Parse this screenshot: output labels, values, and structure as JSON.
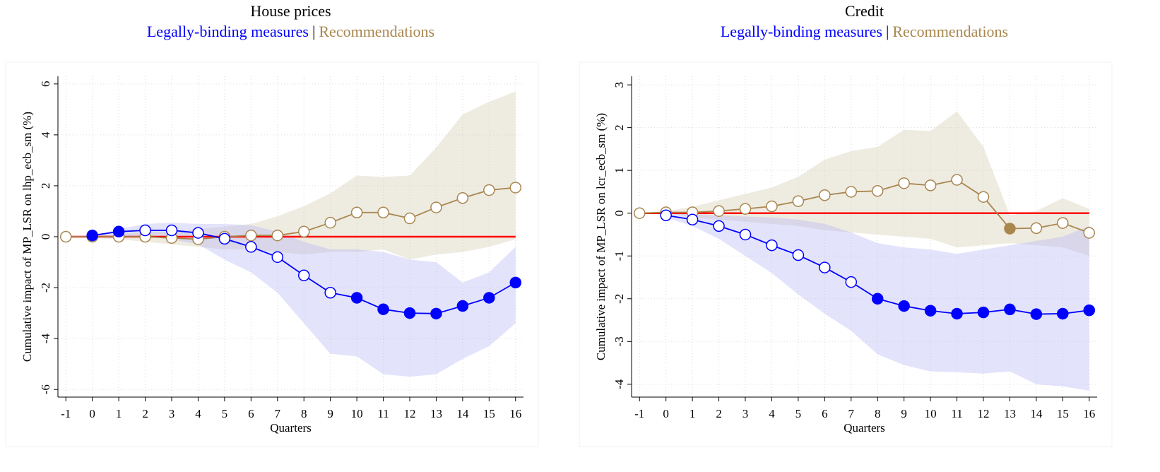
{
  "chart_data": [
    {
      "type": "line",
      "title": "House prices",
      "subtitle_separator": "|",
      "y_label": "Cumulative impact of MP_LSR on lhp_ecb_sm (%)",
      "x_label": "Quarters",
      "x": [
        -1,
        0,
        1,
        2,
        3,
        4,
        5,
        6,
        7,
        8,
        9,
        10,
        11,
        12,
        13,
        14,
        15,
        16
      ],
      "xlim": [
        -1.3,
        16.3
      ],
      "xticks": [
        -1,
        0,
        1,
        2,
        3,
        4,
        5,
        6,
        7,
        8,
        9,
        10,
        11,
        12,
        13,
        14,
        15,
        16
      ],
      "ylim": [
        -6.3,
        6.3
      ],
      "yticks": [
        -6,
        -4,
        -2,
        0,
        2,
        4,
        6
      ],
      "grid": true,
      "reference_line": {
        "value": 0,
        "color": "#ff0000"
      },
      "series": [
        {
          "name": "Recommendations",
          "color": "#a8864e",
          "band_color": "#cfc6a8",
          "values": [
            0,
            0,
            0,
            0,
            -0.05,
            -0.1,
            0,
            0.05,
            0.05,
            0.2,
            0.55,
            0.95,
            0.95,
            0.72,
            1.15,
            1.52,
            1.83,
            1.93
          ],
          "upper": [
            0,
            0.05,
            0.1,
            0.2,
            0.2,
            0.3,
            0.4,
            0.5,
            0.8,
            1.2,
            1.7,
            2.4,
            2.35,
            2.4,
            3.5,
            4.8,
            5.3,
            5.7
          ],
          "lower": [
            0,
            -0.05,
            -0.1,
            -0.2,
            -0.3,
            -0.4,
            -0.5,
            -0.5,
            -0.6,
            -0.7,
            -0.6,
            -0.6,
            -0.5,
            -0.9,
            -0.7,
            -0.6,
            -0.4,
            -0.1
          ],
          "filled": [
            false,
            false,
            false,
            false,
            false,
            false,
            false,
            false,
            false,
            false,
            false,
            false,
            false,
            false,
            false,
            false,
            false,
            false
          ]
        },
        {
          "name": "Legally-binding measures",
          "color": "#0000ff",
          "band_color": "#b0b0f5",
          "values": [
            null,
            0.05,
            0.2,
            0.25,
            0.25,
            0.15,
            -0.08,
            -0.4,
            -0.8,
            -1.52,
            -2.2,
            -2.4,
            -2.85,
            -3.0,
            -3.02,
            -2.72,
            -2.4,
            -1.8
          ],
          "upper": [
            null,
            0,
            0.3,
            0.5,
            0.55,
            0.5,
            0.5,
            0.45,
            0.2,
            -0.2,
            -0.5,
            -0.5,
            -0.6,
            -0.9,
            -1.0,
            -1.8,
            -1.4,
            -0.4
          ],
          "lower": [
            null,
            0,
            0.05,
            0,
            -0.1,
            -0.3,
            -0.9,
            -1.4,
            -2.2,
            -3.4,
            -4.6,
            -4.7,
            -5.4,
            -5.5,
            -5.4,
            -4.8,
            -4.3,
            -3.4
          ],
          "filled": [
            null,
            true,
            true,
            false,
            false,
            false,
            false,
            false,
            false,
            false,
            false,
            true,
            true,
            true,
            true,
            true,
            true,
            true
          ]
        }
      ]
    },
    {
      "type": "line",
      "title": "Credit",
      "subtitle_separator": "|",
      "y_label": "Cumulative impact of MP_LSR on lcr_ecb_sm (%)",
      "x_label": "Quarters",
      "x": [
        -1,
        0,
        1,
        2,
        3,
        4,
        5,
        6,
        7,
        8,
        9,
        10,
        11,
        12,
        13,
        14,
        15,
        16
      ],
      "xlim": [
        -1.3,
        16.3
      ],
      "xticks": [
        -1,
        0,
        1,
        2,
        3,
        4,
        5,
        6,
        7,
        8,
        9,
        10,
        11,
        12,
        13,
        14,
        15,
        16
      ],
      "ylim": [
        -4.3,
        3.2
      ],
      "yticks": [
        -4,
        -3,
        -2,
        -1,
        0,
        1,
        2,
        3
      ],
      "grid": true,
      "reference_line": {
        "value": 0,
        "color": "#ff0000"
      },
      "series": [
        {
          "name": "Recommendations",
          "color": "#a8864e",
          "band_color": "#cfc6a8",
          "values": [
            0,
            0.02,
            0.02,
            0.05,
            0.1,
            0.16,
            0.28,
            0.42,
            0.5,
            0.52,
            0.7,
            0.65,
            0.78,
            0.38,
            -0.36,
            -0.35,
            -0.23,
            -0.46
          ],
          "upper": [
            0,
            0.05,
            0.15,
            0.3,
            0.45,
            0.6,
            0.85,
            1.25,
            1.45,
            1.55,
            1.95,
            1.92,
            2.38,
            1.55,
            -0.05,
            0.05,
            0.35,
            0.1
          ],
          "lower": [
            0,
            0,
            -0.1,
            -0.15,
            -0.2,
            -0.25,
            -0.3,
            -0.4,
            -0.45,
            -0.5,
            -0.55,
            -0.6,
            -0.8,
            -0.75,
            -0.7,
            -0.75,
            -0.8,
            -1.0
          ],
          "filled": [
            false,
            false,
            false,
            false,
            false,
            false,
            false,
            false,
            false,
            false,
            false,
            false,
            false,
            false,
            true,
            false,
            false,
            false
          ]
        },
        {
          "name": "Legally-binding measures",
          "color": "#0000ff",
          "band_color": "#b0b0f5",
          "values": [
            null,
            -0.05,
            -0.15,
            -0.3,
            -0.5,
            -0.75,
            -0.98,
            -1.27,
            -1.61,
            -2.0,
            -2.17,
            -2.28,
            -2.35,
            -2.32,
            -2.25,
            -2.36,
            -2.35,
            -2.27
          ],
          "upper": [
            null,
            0,
            -0.02,
            -0.05,
            -0.08,
            -0.1,
            -0.15,
            -0.25,
            -0.45,
            -0.7,
            -0.8,
            -0.85,
            -0.95,
            -0.85,
            -0.75,
            -0.65,
            -0.55,
            -0.3
          ],
          "lower": [
            null,
            -0.1,
            -0.3,
            -0.6,
            -1.0,
            -1.4,
            -1.9,
            -2.35,
            -2.75,
            -3.3,
            -3.55,
            -3.7,
            -3.72,
            -3.75,
            -3.7,
            -4.0,
            -4.05,
            -4.15
          ],
          "filled": [
            null,
            false,
            false,
            false,
            false,
            false,
            false,
            false,
            false,
            true,
            true,
            true,
            true,
            true,
            true,
            true,
            true,
            true
          ]
        }
      ]
    }
  ]
}
